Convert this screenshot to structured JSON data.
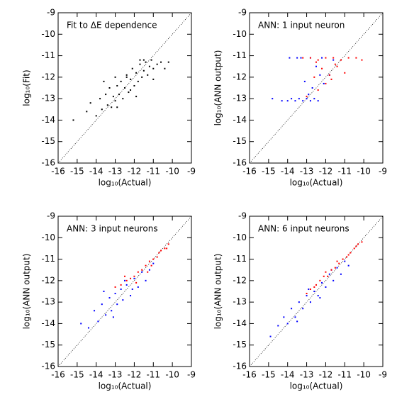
{
  "chart_data": [
    {
      "type": "scatter",
      "annotation": "Fit to ΔE dependence",
      "xlabel": "log₁₀(Actual)",
      "ylabel": "log₁₀(Fit)",
      "xlim": [
        -16,
        -9
      ],
      "ylim": [
        -16,
        -9
      ],
      "xticks": [
        -16,
        -15,
        -14,
        -13,
        -12,
        -11,
        -10,
        -9
      ],
      "yticks": [
        -16,
        -15,
        -14,
        -13,
        -12,
        -11,
        -10,
        -9
      ],
      "series": [
        {
          "color": "#000000",
          "x": [
            -15.2,
            -14.5,
            -14.3,
            -14.0,
            -13.8,
            -13.7,
            -13.5,
            -13.4,
            -13.3,
            -13.2,
            -13.1,
            -13.0,
            -12.9,
            -12.8,
            -12.7,
            -12.6,
            -12.5,
            -12.4,
            -12.3,
            -12.2,
            -12.1,
            -12.0,
            -11.9,
            -11.8,
            -11.7,
            -11.6,
            -11.5,
            -11.4,
            -11.3,
            -11.2,
            -11.1,
            -11.0,
            -10.8,
            -10.6,
            -10.4,
            -10.2,
            -13.6,
            -12.9,
            -12.4,
            -11.9,
            -11.5,
            -11.0,
            -13.0,
            -12.2,
            -11.7
          ],
          "y": [
            -14.0,
            -13.6,
            -13.2,
            -13.8,
            -13.0,
            -13.5,
            -12.8,
            -13.3,
            -12.5,
            -13.4,
            -12.9,
            -13.1,
            -12.4,
            -12.8,
            -12.2,
            -13.0,
            -12.5,
            -11.9,
            -12.7,
            -12.1,
            -11.6,
            -12.4,
            -11.8,
            -12.2,
            -11.4,
            -12.0,
            -11.7,
            -11.3,
            -11.9,
            -11.5,
            -11.2,
            -11.6,
            -11.4,
            -11.3,
            -11.6,
            -11.3,
            -12.2,
            -13.4,
            -12.0,
            -12.9,
            -11.2,
            -12.1,
            -12.0,
            -12.6,
            -11.2
          ]
        }
      ]
    },
    {
      "type": "scatter",
      "annotation": "ANN: 1 input neuron",
      "xlabel": "log₁₀(Actual)",
      "ylabel": "log₁₀(ANN output)",
      "xlim": [
        -16,
        -9
      ],
      "ylim": [
        -16,
        -9
      ],
      "xticks": [
        -16,
        -15,
        -14,
        -13,
        -12,
        -11,
        -10,
        -9
      ],
      "yticks": [
        -16,
        -15,
        -14,
        -13,
        -12,
        -11,
        -10,
        -9
      ],
      "series": [
        {
          "color": "#0000ff",
          "x": [
            -14.8,
            -14.3,
            -14.0,
            -13.8,
            -13.6,
            -13.4,
            -13.2,
            -13.0,
            -12.8,
            -12.6,
            -12.4,
            -13.9,
            -13.5,
            -13.1,
            -12.7,
            -12.3,
            -12.9,
            -12.5,
            -12.1,
            -11.8,
            -13.3,
            -12.8,
            -12.2,
            -11.6
          ],
          "y": [
            -13.0,
            -13.1,
            -13.1,
            -13.0,
            -13.1,
            -13.0,
            -13.1,
            -13.0,
            -13.1,
            -13.0,
            -13.1,
            -11.1,
            -11.1,
            -12.2,
            -12.5,
            -11.9,
            -12.8,
            -11.5,
            -12.3,
            -11.9,
            -11.1,
            -11.1,
            -11.1,
            -11.2
          ]
        },
        {
          "color": "#ff0000",
          "x": [
            -13.2,
            -12.8,
            -12.4,
            -12.0,
            -11.6,
            -11.2,
            -10.8,
            -10.4,
            -10.1,
            -12.6,
            -12.2,
            -11.8,
            -11.4,
            -11.0,
            -12.4,
            -12.0,
            -11.5,
            -13.0,
            -12.5,
            -11.7
          ],
          "y": [
            -11.1,
            -11.1,
            -11.2,
            -11.1,
            -11.1,
            -11.2,
            -11.1,
            -11.1,
            -11.2,
            -12.0,
            -11.6,
            -11.9,
            -11.5,
            -11.8,
            -12.6,
            -12.3,
            -11.4,
            -12.9,
            -11.3,
            -12.1
          ]
        }
      ]
    },
    {
      "type": "scatter",
      "annotation": "ANN: 3 input neurons",
      "xlabel": "log₁₀(Actual)",
      "ylabel": "log₁₀(ANN output)",
      "xlim": [
        -16,
        -9
      ],
      "ylim": [
        -16,
        -9
      ],
      "xticks": [
        -16,
        -15,
        -14,
        -13,
        -12,
        -11,
        -10,
        -9
      ],
      "yticks": [
        -16,
        -15,
        -14,
        -13,
        -12,
        -11,
        -10,
        -9
      ],
      "series": [
        {
          "color": "#0000ff",
          "x": [
            -14.8,
            -14.4,
            -14.1,
            -13.9,
            -13.7,
            -13.5,
            -13.3,
            -13.2,
            -13.0,
            -12.9,
            -12.7,
            -12.6,
            -12.4,
            -12.2,
            -12.0,
            -11.8,
            -11.6,
            -11.4,
            -11.2,
            -11.0,
            -13.6,
            -13.1,
            -12.5,
            -12.1
          ],
          "y": [
            -14.0,
            -14.2,
            -13.4,
            -13.9,
            -13.1,
            -13.6,
            -12.8,
            -13.4,
            -12.6,
            -13.1,
            -12.4,
            -12.9,
            -12.2,
            -12.7,
            -11.9,
            -12.3,
            -11.6,
            -12.0,
            -11.5,
            -11.2,
            -12.5,
            -13.7,
            -12.0,
            -12.4
          ]
        },
        {
          "color": "#ff0000",
          "x": [
            -13.0,
            -12.7,
            -12.4,
            -12.2,
            -12.0,
            -11.8,
            -11.6,
            -11.4,
            -11.2,
            -11.0,
            -10.8,
            -10.6,
            -10.4,
            -10.2,
            -12.5,
            -11.9,
            -11.3,
            -10.7,
            -11.1,
            -10.3
          ],
          "y": [
            -12.3,
            -12.2,
            -12.0,
            -11.9,
            -11.8,
            -11.6,
            -11.5,
            -11.3,
            -11.1,
            -11.0,
            -10.9,
            -10.6,
            -10.5,
            -10.3,
            -11.8,
            -12.1,
            -11.6,
            -10.7,
            -11.3,
            -10.5
          ]
        }
      ]
    },
    {
      "type": "scatter",
      "annotation": "ANN: 6 input neurons",
      "xlabel": "log₁₀(Actual)",
      "ylabel": "log₁₀(ANN output)",
      "xlim": [
        -16,
        -9
      ],
      "ylim": [
        -16,
        -9
      ],
      "xticks": [
        -16,
        -15,
        -14,
        -13,
        -12,
        -11,
        -10,
        -9
      ],
      "yticks": [
        -16,
        -15,
        -14,
        -13,
        -12,
        -11,
        -10,
        -9
      ],
      "series": [
        {
          "color": "#0000ff",
          "x": [
            -14.9,
            -14.5,
            -14.2,
            -14.0,
            -13.8,
            -13.6,
            -13.4,
            -13.2,
            -13.0,
            -12.8,
            -12.6,
            -12.4,
            -12.2,
            -12.0,
            -11.8,
            -11.6,
            -11.4,
            -11.2,
            -11.0,
            -10.8,
            -13.5,
            -12.9,
            -12.3,
            -11.7
          ],
          "y": [
            -14.6,
            -14.1,
            -13.7,
            -14.0,
            -13.3,
            -13.7,
            -13.0,
            -13.3,
            -12.7,
            -13.0,
            -12.5,
            -12.7,
            -12.1,
            -12.3,
            -11.7,
            -12.0,
            -11.4,
            -11.7,
            -11.1,
            -11.3,
            -13.9,
            -12.4,
            -12.8,
            -11.5
          ]
        },
        {
          "color": "#ff0000",
          "x": [
            -13.0,
            -12.8,
            -12.5,
            -12.3,
            -12.1,
            -11.9,
            -11.7,
            -11.5,
            -11.3,
            -11.1,
            -10.9,
            -10.7,
            -10.5,
            -10.3,
            -10.1,
            -12.6,
            -12.0,
            -11.4,
            -10.8,
            -10.4
          ],
          "y": [
            -12.6,
            -12.4,
            -12.2,
            -12.0,
            -11.8,
            -11.8,
            -11.5,
            -11.4,
            -11.2,
            -11.0,
            -10.9,
            -10.7,
            -10.5,
            -10.3,
            -10.2,
            -12.3,
            -11.6,
            -11.1,
            -10.8,
            -10.4
          ]
        }
      ]
    }
  ]
}
